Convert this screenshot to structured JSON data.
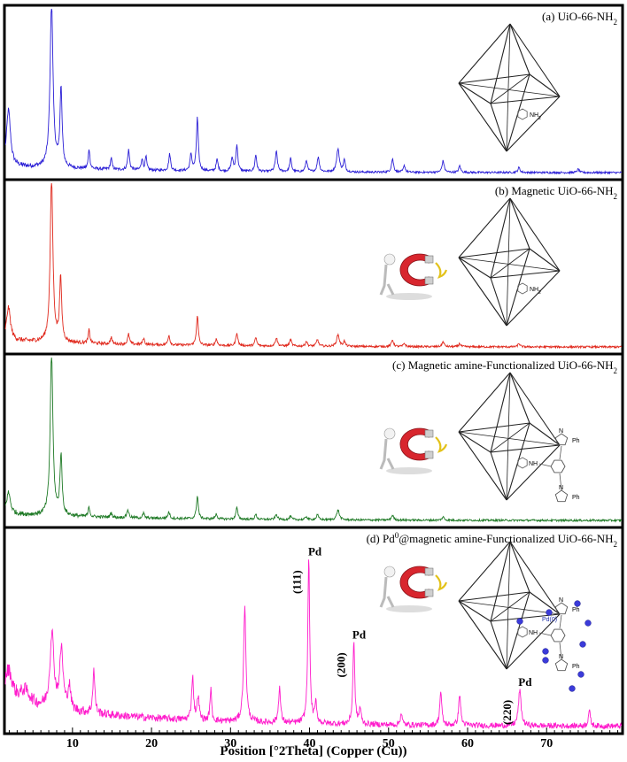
{
  "chart_data": {
    "type": "line",
    "xlabel": "Position [°2Theta] (Copper (Cu))",
    "xlim": [
      1.5,
      79.5
    ],
    "x_ticks": [
      10,
      20,
      30,
      40,
      50,
      60,
      70
    ],
    "x_tick_labels": [
      "10",
      "20",
      "30",
      "40",
      "50",
      "60",
      "70"
    ],
    "grid": false,
    "legend": "none",
    "series": [
      {
        "name": "(a) UiO-66-NH2",
        "label_main": "(a) UiO-66-NH",
        "label_sub": "2",
        "color": "#2b1fd6",
        "baseline": 0.04,
        "peaks": [
          [
            1.9,
            0.34,
            0.3
          ],
          [
            7.35,
            1.0,
            0.22
          ],
          [
            8.55,
            0.47,
            0.16
          ],
          [
            12.1,
            0.12,
            0.12
          ],
          [
            14.9,
            0.07,
            0.12
          ],
          [
            17.1,
            0.12,
            0.14
          ],
          [
            18.8,
            0.07,
            0.12
          ],
          [
            19.3,
            0.08,
            0.12
          ],
          [
            22.3,
            0.1,
            0.14
          ],
          [
            25.0,
            0.1,
            0.14
          ],
          [
            25.8,
            0.32,
            0.14
          ],
          [
            28.3,
            0.07,
            0.14
          ],
          [
            30.2,
            0.08,
            0.14
          ],
          [
            30.8,
            0.16,
            0.14
          ],
          [
            33.2,
            0.1,
            0.14
          ],
          [
            35.8,
            0.12,
            0.16
          ],
          [
            37.6,
            0.08,
            0.14
          ],
          [
            39.6,
            0.07,
            0.14
          ],
          [
            41.1,
            0.09,
            0.16
          ],
          [
            43.6,
            0.14,
            0.2
          ],
          [
            44.4,
            0.07,
            0.14
          ],
          [
            50.5,
            0.08,
            0.16
          ],
          [
            52.0,
            0.04,
            0.14
          ],
          [
            56.9,
            0.07,
            0.16
          ],
          [
            59.0,
            0.04,
            0.14
          ],
          [
            66.5,
            0.03,
            0.16
          ],
          [
            74.0,
            0.02,
            0.16
          ]
        ]
      },
      {
        "name": "(b) Magnetic UiO-66-NH2",
        "label_main": "(b) Magnetic UiO-66-NH",
        "label_sub": "2",
        "color": "#e0281c",
        "baseline": 0.04,
        "peaks": [
          [
            1.9,
            0.2,
            0.3
          ],
          [
            7.35,
            1.0,
            0.2
          ],
          [
            8.5,
            0.38,
            0.16
          ],
          [
            12.1,
            0.08,
            0.12
          ],
          [
            14.9,
            0.04,
            0.12
          ],
          [
            17.1,
            0.06,
            0.14
          ],
          [
            19.0,
            0.04,
            0.12
          ],
          [
            22.2,
            0.06,
            0.14
          ],
          [
            25.8,
            0.18,
            0.14
          ],
          [
            28.2,
            0.04,
            0.14
          ],
          [
            30.8,
            0.08,
            0.14
          ],
          [
            33.2,
            0.05,
            0.14
          ],
          [
            35.8,
            0.05,
            0.16
          ],
          [
            37.6,
            0.04,
            0.14
          ],
          [
            39.6,
            0.03,
            0.14
          ],
          [
            41.0,
            0.04,
            0.16
          ],
          [
            43.6,
            0.07,
            0.2
          ],
          [
            44.4,
            0.03,
            0.14
          ],
          [
            50.5,
            0.04,
            0.16
          ],
          [
            52.0,
            0.02,
            0.14
          ],
          [
            56.9,
            0.03,
            0.16
          ],
          [
            59.0,
            0.02,
            0.14
          ],
          [
            66.5,
            0.02,
            0.16
          ]
        ]
      },
      {
        "name": "(c) Magnetic amine-Functionalized UiO-66-NH2",
        "label_main": "(c) Magnetic amine-Functionalized UiO-66-NH",
        "label_sub": "2",
        "color": "#1f7a26",
        "baseline": 0.04,
        "peaks": [
          [
            1.9,
            0.13,
            0.3
          ],
          [
            7.35,
            1.0,
            0.2
          ],
          [
            8.55,
            0.36,
            0.16
          ],
          [
            12.1,
            0.06,
            0.12
          ],
          [
            14.9,
            0.03,
            0.12
          ],
          [
            17.0,
            0.05,
            0.14
          ],
          [
            19.0,
            0.03,
            0.12
          ],
          [
            22.2,
            0.04,
            0.14
          ],
          [
            25.8,
            0.14,
            0.14
          ],
          [
            28.2,
            0.03,
            0.14
          ],
          [
            30.8,
            0.07,
            0.14
          ],
          [
            33.2,
            0.03,
            0.14
          ],
          [
            35.8,
            0.03,
            0.16
          ],
          [
            37.6,
            0.02,
            0.14
          ],
          [
            39.6,
            0.02,
            0.14
          ],
          [
            41.0,
            0.03,
            0.16
          ],
          [
            43.6,
            0.06,
            0.2
          ],
          [
            50.5,
            0.03,
            0.16
          ],
          [
            56.9,
            0.02,
            0.16
          ]
        ]
      },
      {
        "name": "(d) Pd0@magnetic amine-Functionalized UiO-66-NH2",
        "label_pre": "(d) Pd",
        "label_sup": "0",
        "label_main": "@magnetic amine-Functionalized UiO-66-NH",
        "label_sub": "2",
        "color": "#ff1ccc",
        "baseline": 0.12,
        "peaks": [
          [
            1.9,
            0.16,
            0.6
          ],
          [
            4.0,
            0.07,
            0.8
          ],
          [
            7.4,
            0.38,
            0.3
          ],
          [
            8.6,
            0.3,
            0.25
          ],
          [
            9.6,
            0.12,
            0.2
          ],
          [
            12.7,
            0.22,
            0.15
          ],
          [
            25.2,
            0.22,
            0.15
          ],
          [
            25.9,
            0.12,
            0.15
          ],
          [
            27.5,
            0.16,
            0.12
          ],
          [
            31.8,
            0.58,
            0.18
          ],
          [
            36.2,
            0.18,
            0.15
          ],
          [
            39.9,
            0.84,
            0.14
          ],
          [
            40.8,
            0.1,
            0.14
          ],
          [
            45.6,
            0.42,
            0.14
          ],
          [
            46.4,
            0.08,
            0.14
          ],
          [
            51.6,
            0.06,
            0.14
          ],
          [
            56.6,
            0.17,
            0.15
          ],
          [
            59.0,
            0.16,
            0.15
          ],
          [
            66.6,
            0.18,
            0.2
          ],
          [
            75.4,
            0.08,
            0.15
          ]
        ],
        "annotations": [
          {
            "label": "Pd",
            "miller": "(111)",
            "x": 40.0
          },
          {
            "label": "Pd",
            "miller": "(200)",
            "x": 45.6
          },
          {
            "label": "Pd",
            "miller": "(220)",
            "x": 66.6
          }
        ]
      }
    ]
  },
  "molecule_labels": {
    "amine": "NH",
    "amine_sub": "2",
    "nh": "NH",
    "n": "N",
    "ph": "Ph",
    "pd": "Pd(0)"
  }
}
